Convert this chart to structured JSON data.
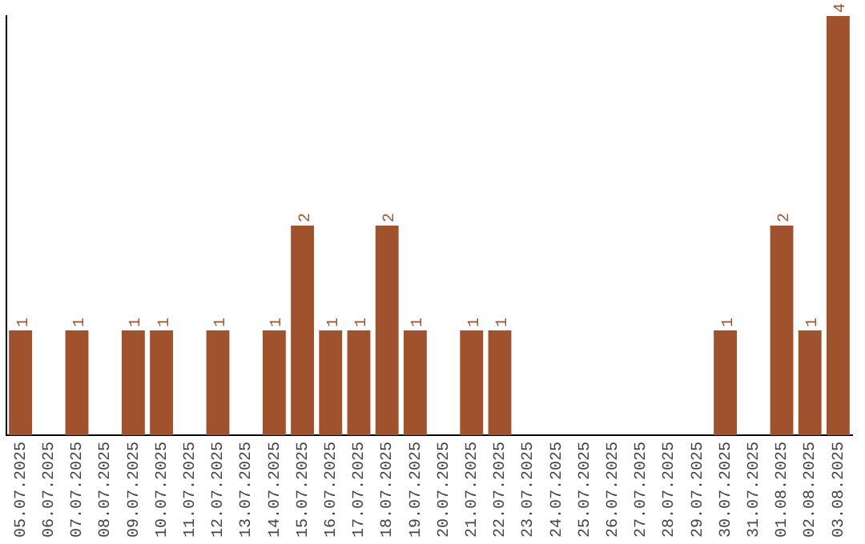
{
  "chart_data": {
    "type": "bar",
    "categories": [
      "05.07.2025",
      "06.07.2025",
      "07.07.2025",
      "08.07.2025",
      "09.07.2025",
      "10.07.2025",
      "11.07.2025",
      "12.07.2025",
      "13.07.2025",
      "14.07.2025",
      "15.07.2025",
      "16.07.2025",
      "17.07.2025",
      "18.07.2025",
      "19.07.2025",
      "20.07.2025",
      "21.07.2025",
      "22.07.2025",
      "23.07.2025",
      "24.07.2025",
      "25.07.2025",
      "26.07.2025",
      "27.07.2025",
      "28.07.2025",
      "29.07.2025",
      "30.07.2025",
      "31.07.2025",
      "01.08.2025",
      "02.08.2025",
      "03.08.2025"
    ],
    "values": [
      1,
      0,
      1,
      0,
      1,
      1,
      0,
      1,
      0,
      1,
      2,
      1,
      1,
      2,
      1,
      0,
      1,
      1,
      0,
      0,
      0,
      0,
      0,
      0,
      0,
      1,
      0,
      2,
      1,
      4
    ],
    "value_labels": [
      "1",
      null,
      "1",
      null,
      "1",
      "1",
      null,
      "1",
      null,
      "1",
      "2",
      "1",
      "1",
      "2",
      "1",
      null,
      "1",
      "1",
      null,
      null,
      null,
      null,
      null,
      null,
      null,
      "1",
      null,
      "2",
      "1",
      "4"
    ],
    "color": "#a0522d",
    "ylim": [
      0,
      4
    ],
    "tick_labels": "x",
    "grid": false,
    "legend": false
  }
}
